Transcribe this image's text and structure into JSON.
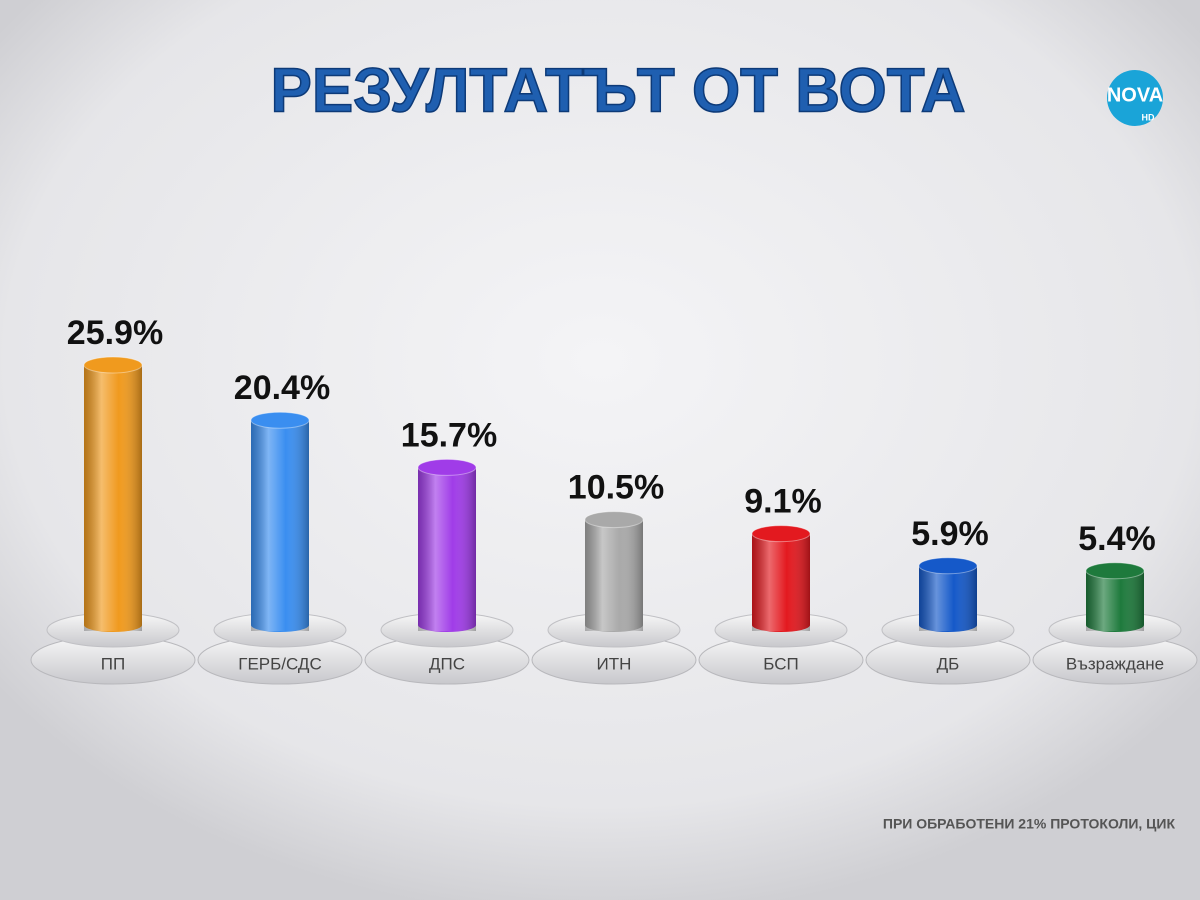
{
  "chart_data": {
    "type": "bar",
    "title": "РЕЗУЛТАТЪТ ОТ ВОТА",
    "categories": [
      "ПП",
      "ГЕРБ/СДС",
      "ДПС",
      "ИТН",
      "БСП",
      "ДБ",
      "Възраждане"
    ],
    "values": [
      25.9,
      20.4,
      15.7,
      10.5,
      9.1,
      5.9,
      5.4
    ],
    "value_labels": [
      "25.9%",
      "20.4%",
      "15.7%",
      "10.5%",
      "9.1%",
      "5.9%",
      "5.4%"
    ],
    "colors": [
      "#f09a1e",
      "#3a8ef0",
      "#a03ce8",
      "#a9a9a9",
      "#e3191f",
      "#1559c9",
      "#1e7a3c"
    ],
    "note": "ПРИ ОБРАБОТЕНИ 21% ПРОТОКОЛИ, ЦИК"
  },
  "logo": {
    "text": "NOVA",
    "sub": "HD"
  }
}
